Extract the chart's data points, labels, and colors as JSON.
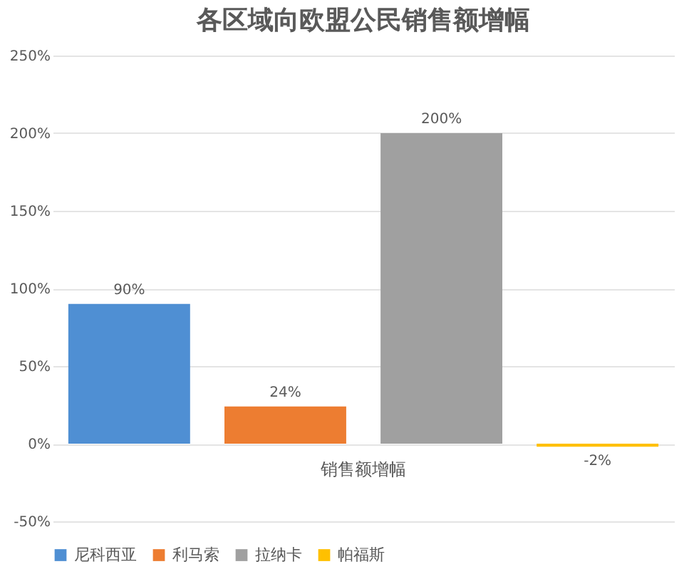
{
  "chart_data": {
    "type": "bar",
    "title": "各区域向欧盟公民销售额增幅",
    "categories": [
      "销售额增幅"
    ],
    "series": [
      {
        "name": "尼科西亚",
        "color": "#4f8fd3",
        "values": [
          90
        ],
        "value_labels": [
          "90%"
        ]
      },
      {
        "name": "利马索",
        "color": "#ed7d31",
        "values": [
          24
        ],
        "value_labels": [
          "24%"
        ]
      },
      {
        "name": "拉纳卡",
        "color": "#a0a0a0",
        "values": [
          200
        ],
        "value_labels": [
          "200%"
        ]
      },
      {
        "name": "帕福斯",
        "color": "#ffc000",
        "values": [
          -2
        ],
        "value_labels": [
          "-2%"
        ]
      }
    ],
    "ylim": [
      -50,
      250
    ],
    "yticks": [
      {
        "value": -50,
        "label": "-50%"
      },
      {
        "value": 0,
        "label": "0%"
      },
      {
        "value": 50,
        "label": "50%"
      },
      {
        "value": 100,
        "label": "100%"
      },
      {
        "value": 150,
        "label": "150%"
      },
      {
        "value": 200,
        "label": "200%"
      },
      {
        "value": 250,
        "label": "250%"
      }
    ],
    "grid": "y",
    "legend": "bottom"
  }
}
